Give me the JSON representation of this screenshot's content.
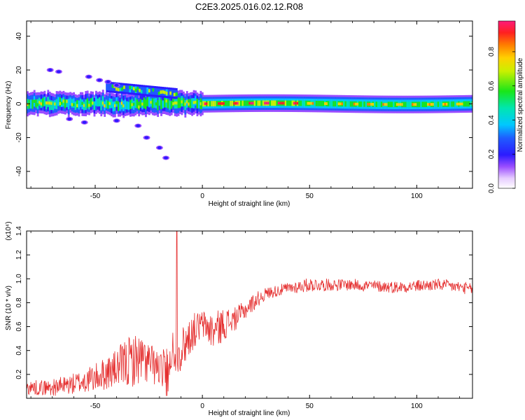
{
  "title": "C2E3.2025.016.02.12.R08",
  "colors": {
    "snr_line": "#e53030",
    "axis": "#000000",
    "track": "#ff2a2a"
  },
  "chart_data": [
    {
      "type": "heatmap",
      "title": "C2E3.2025.016.02.12.R08",
      "xlabel": "Height of straight line (km)",
      "ylabel": "Frequency (Hz)",
      "xlim": [
        -82,
        126
      ],
      "ylim": [
        -50,
        49
      ],
      "x_ticks": [
        -50,
        0,
        50,
        100
      ],
      "x_tick_labels": [
        "-50",
        "0",
        "50",
        "100"
      ],
      "y_ticks": [
        -40,
        -20,
        0,
        20,
        40
      ],
      "y_tick_labels": [
        "-40",
        "-20",
        "0",
        "20",
        "40"
      ],
      "grid": false,
      "colorbar": {
        "label": "Normalized spectral amplitude",
        "range": [
          0.0,
          0.98
        ],
        "ticks": [
          0.0,
          0.2,
          0.4,
          0.6,
          0.8
        ],
        "tick_labels": [
          "0.0",
          "0.2",
          "0.4",
          "0.6",
          "0.8"
        ],
        "colormap": "rainbow-white-violet-red"
      },
      "features": {
        "main_track": {
          "x_range": [
            -82,
            126
          ],
          "freq_center": 0,
          "freq_halfwidth_left": 5,
          "freq_halfwidth_right": 4
        },
        "upper_branch": {
          "x_range": [
            -45,
            -12
          ],
          "freq_range": [
            4,
            12
          ]
        },
        "scatter_patches": [
          {
            "x": -71,
            "y": 20
          },
          {
            "x": -67,
            "y": 19
          },
          {
            "x": -53,
            "y": 16
          },
          {
            "x": -48,
            "y": 14
          },
          {
            "x": -44,
            "y": 13
          },
          {
            "x": -40,
            "y": 11
          },
          {
            "x": -62,
            "y": -9
          },
          {
            "x": -55,
            "y": -11
          },
          {
            "x": -40,
            "y": -10
          },
          {
            "x": -30,
            "y": -13
          },
          {
            "x": -26,
            "y": -20
          },
          {
            "x": -20,
            "y": -26
          },
          {
            "x": -17,
            "y": -32
          }
        ]
      }
    },
    {
      "type": "line",
      "xlabel": "Height of straight line (km)",
      "ylabel": "SNR (10 * v/v)",
      "y_multiplier": "(x10⁴)",
      "xlim": [
        -82,
        126
      ],
      "ylim": [
        0,
        1.4
      ],
      "x_ticks": [
        -50,
        0,
        50,
        100
      ],
      "x_tick_labels": [
        "-50",
        "0",
        "50",
        "100"
      ],
      "y_ticks": [
        0.2,
        0.4,
        0.6,
        0.8,
        1.0,
        1.2,
        1.4
      ],
      "y_tick_labels": [
        "0.2",
        "0.4",
        "0.6",
        "0.8",
        "1.0",
        "1.2",
        "1.4"
      ],
      "grid": false,
      "series": [
        {
          "envelope_x": [
            -82,
            -70,
            -60,
            -50,
            -40,
            -35,
            -30,
            -25,
            -20,
            -16,
            -14,
            -12,
            -10,
            -5,
            0,
            5,
            10,
            15,
            20,
            25,
            30,
            40,
            50,
            60,
            70,
            80,
            90,
            100,
            110,
            120,
            126
          ],
          "envelope_mean": [
            0.09,
            0.09,
            0.12,
            0.17,
            0.25,
            0.3,
            0.33,
            0.3,
            0.24,
            0.3,
            0.4,
            0.4,
            0.4,
            0.55,
            0.62,
            0.56,
            0.62,
            0.66,
            0.74,
            0.82,
            0.88,
            0.92,
            0.95,
            0.95,
            0.95,
            0.94,
            0.93,
            0.94,
            0.95,
            0.93,
            0.91
          ],
          "envelope_amp": [
            0.06,
            0.07,
            0.09,
            0.12,
            0.16,
            0.22,
            0.22,
            0.18,
            0.14,
            0.16,
            0.18,
            0.18,
            0.18,
            0.16,
            0.12,
            0.16,
            0.14,
            0.1,
            0.08,
            0.07,
            0.05,
            0.05,
            0.06,
            0.05,
            0.05,
            0.05,
            0.05,
            0.05,
            0.05,
            0.05,
            0.05
          ],
          "spike": {
            "x": -12,
            "y": 1.4
          }
        }
      ]
    }
  ]
}
